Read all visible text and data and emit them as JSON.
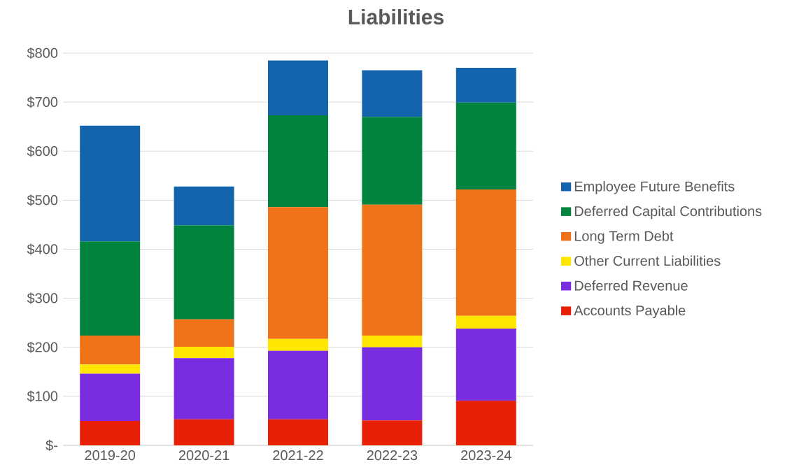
{
  "chart_data": {
    "type": "bar",
    "title": "Liabilities",
    "stacked": true,
    "categories": [
      "2019-20",
      "2020-21",
      "2021-22",
      "2022-23",
      "2023-24"
    ],
    "series": [
      {
        "name": "Accounts Payable",
        "color": "#e82008",
        "values": [
          50,
          53,
          53,
          51,
          91
        ]
      },
      {
        "name": "Deferred Revenue",
        "color": "#7a2de0",
        "values": [
          96,
          125,
          140,
          149,
          147
        ]
      },
      {
        "name": "Other Current Liabilities",
        "color": "#ffe600",
        "values": [
          19,
          23,
          24,
          24,
          26
        ]
      },
      {
        "name": "Long Term Debt",
        "color": "#f07218",
        "values": [
          59,
          56,
          269,
          267,
          258
        ]
      },
      {
        "name": "Deferred Capital Contributions",
        "color": "#00843d",
        "values": [
          192,
          192,
          187,
          179,
          177
        ]
      },
      {
        "name": "Employee Future Benefits",
        "color": "#1464ad",
        "values": [
          236,
          79,
          112,
          95,
          71
        ]
      }
    ],
    "ylim": [
      0,
      800
    ],
    "yticks": [
      {
        "value": 0,
        "label": "$-"
      },
      {
        "value": 100,
        "label": "$100"
      },
      {
        "value": 200,
        "label": "$200"
      },
      {
        "value": 300,
        "label": "$300"
      },
      {
        "value": 400,
        "label": "$400"
      },
      {
        "value": 500,
        "label": "$500"
      },
      {
        "value": 600,
        "label": "$600"
      },
      {
        "value": 700,
        "label": "$700"
      },
      {
        "value": 800,
        "label": "$800"
      }
    ],
    "grid": "y",
    "legend": "right"
  }
}
